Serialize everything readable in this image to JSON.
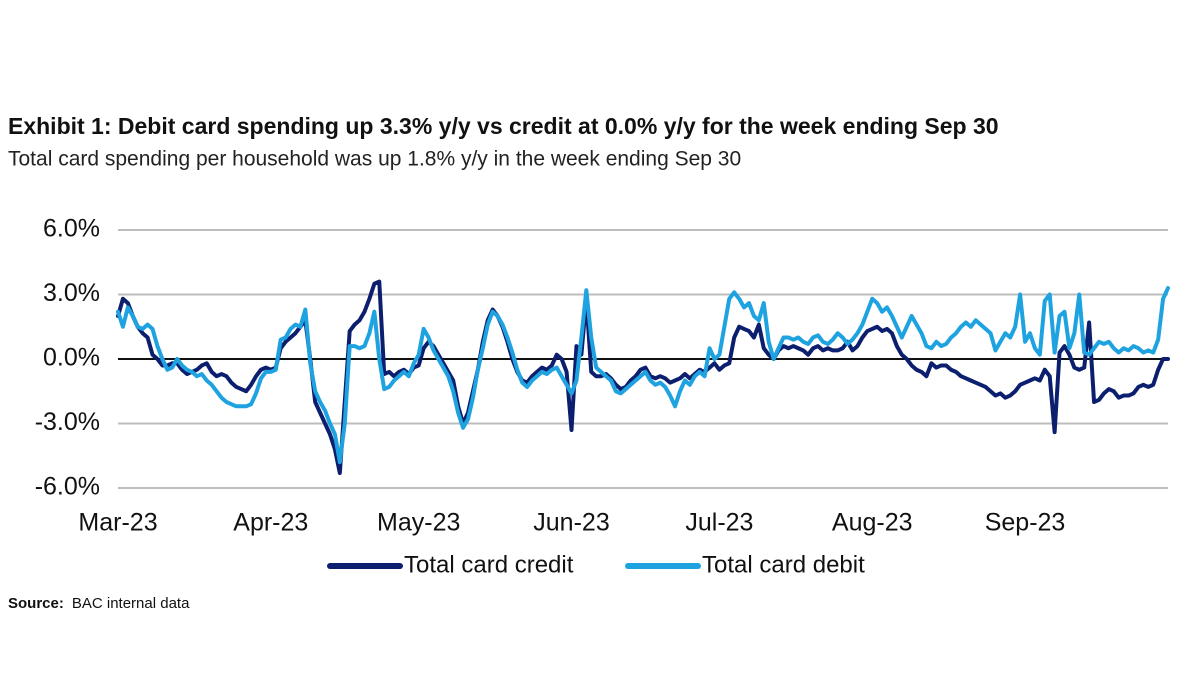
{
  "chart_data": {
    "type": "line",
    "title": "Exhibit 1: Debit card spending up 3.3% y/y vs credit at 0.0% y/y  for the week ending Sep 30",
    "subtitle": "Total card spending per household was up 1.8% y/y in the week ending Sep 30",
    "source_label": "Source:",
    "source": "BAC internal data",
    "ylim": [
      -6,
      6
    ],
    "yticks": [
      {
        "value": 6,
        "label": "6.0%"
      },
      {
        "value": 3,
        "label": "3.0%"
      },
      {
        "value": 0,
        "label": "0.0%"
      },
      {
        "value": -3,
        "label": "-3.0%"
      },
      {
        "value": -6,
        "label": "-6.0%"
      }
    ],
    "grid": true,
    "legend": "bottom",
    "categories": [
      "Mar-23",
      null,
      null,
      null,
      null,
      null,
      null,
      null,
      null,
      null,
      null,
      null,
      null,
      null,
      null,
      null,
      null,
      null,
      null,
      null,
      null,
      null,
      null,
      null,
      null,
      null,
      null,
      null,
      null,
      null,
      null,
      "Apr-23",
      null,
      null,
      null,
      null,
      null,
      null,
      null,
      null,
      null,
      null,
      null,
      null,
      null,
      null,
      null,
      null,
      null,
      null,
      null,
      null,
      null,
      null,
      null,
      null,
      null,
      null,
      null,
      null,
      null,
      "May-23",
      null,
      null,
      null,
      null,
      null,
      null,
      null,
      null,
      null,
      null,
      null,
      null,
      null,
      null,
      null,
      null,
      null,
      null,
      null,
      null,
      null,
      null,
      null,
      null,
      null,
      null,
      null,
      null,
      null,
      null,
      "Jun-23",
      null,
      null,
      null,
      null,
      null,
      null,
      null,
      null,
      null,
      null,
      null,
      null,
      null,
      null,
      null,
      null,
      null,
      null,
      null,
      null,
      null,
      null,
      null,
      null,
      null,
      null,
      null,
      null,
      null,
      "Jul-23",
      null,
      null,
      null,
      null,
      null,
      null,
      null,
      null,
      null,
      null,
      null,
      null,
      null,
      null,
      null,
      null,
      null,
      null,
      null,
      null,
      null,
      null,
      null,
      null,
      null,
      null,
      null,
      null,
      null,
      null,
      "Aug-23",
      null,
      null,
      null,
      null,
      null,
      null,
      null,
      null,
      null,
      null,
      null,
      null,
      null,
      null,
      null,
      null,
      null,
      null,
      null,
      null,
      null,
      null,
      null,
      null,
      null,
      null,
      null,
      null,
      null,
      null,
      "Sep-23",
      null,
      null,
      null,
      null,
      null,
      null,
      null,
      null,
      null,
      null,
      null,
      null,
      null,
      null,
      null,
      null,
      null,
      null,
      null,
      null,
      null,
      null,
      null,
      null,
      null,
      null,
      null,
      null,
      null
    ],
    "series": [
      {
        "name": "Total card credit",
        "color": "#0c1f6e",
        "values": [
          2.0,
          2.8,
          2.6,
          2.0,
          1.5,
          1.2,
          1.0,
          0.2,
          0.0,
          -0.3,
          -0.3,
          -0.2,
          -0.2,
          -0.5,
          -0.7,
          -0.6,
          -0.5,
          -0.3,
          -0.2,
          -0.6,
          -0.8,
          -0.7,
          -0.8,
          -1.1,
          -1.3,
          -1.4,
          -1.5,
          -1.2,
          -0.8,
          -0.5,
          -0.4,
          -0.5,
          -0.4,
          0.5,
          0.8,
          1.0,
          1.2,
          1.5,
          1.8,
          0.0,
          -2.0,
          -2.5,
          -3.0,
          -3.5,
          -4.2,
          -5.3,
          -2.0,
          1.3,
          1.6,
          1.8,
          2.2,
          2.8,
          3.5,
          3.6,
          -0.7,
          -0.6,
          -0.8,
          -0.6,
          -0.5,
          -0.7,
          -0.4,
          -0.3,
          0.5,
          0.8,
          0.6,
          0.2,
          -0.2,
          -0.6,
          -1.0,
          -2.2,
          -3.0,
          -2.5,
          -1.5,
          -0.5,
          0.8,
          1.8,
          2.3,
          2.0,
          1.5,
          0.8,
          0.0,
          -0.6,
          -1.0,
          -1.1,
          -0.8,
          -0.6,
          -0.4,
          -0.5,
          -0.3,
          0.2,
          0.0,
          -0.6,
          -3.3,
          0.6,
          0.2,
          2.8,
          -0.6,
          -0.8,
          -0.8,
          -0.7,
          -0.9,
          -1.2,
          -1.4,
          -1.3,
          -1.0,
          -0.8,
          -0.5,
          -0.4,
          -0.8,
          -0.9,
          -0.8,
          -0.9,
          -1.1,
          -1.0,
          -0.9,
          -0.7,
          -0.9,
          -0.7,
          -0.5,
          -0.6,
          -0.4,
          -0.2,
          -0.5,
          -0.3,
          -0.2,
          1.0,
          1.5,
          1.4,
          1.3,
          1.0,
          1.6,
          0.5,
          0.2,
          0.0,
          0.4,
          0.6,
          0.5,
          0.6,
          0.5,
          0.4,
          0.2,
          0.5,
          0.6,
          0.4,
          0.5,
          0.4,
          0.4,
          0.5,
          0.8,
          0.4,
          0.6,
          1.0,
          1.3,
          1.4,
          1.5,
          1.3,
          1.4,
          1.2,
          0.6,
          0.2,
          0.0,
          -0.3,
          -0.5,
          -0.6,
          -0.8,
          -0.2,
          -0.4,
          -0.3,
          -0.3,
          -0.5,
          -0.6,
          -0.8,
          -0.9,
          -1.0,
          -1.1,
          -1.2,
          -1.3,
          -1.5,
          -1.7,
          -1.6,
          -1.8,
          -1.7,
          -1.5,
          -1.2,
          -1.1,
          -1.0,
          -0.9,
          -1.0,
          -0.5,
          -0.8,
          -3.4,
          0.3,
          0.6,
          0.2,
          -0.4,
          -0.5,
          -0.4,
          1.7,
          -2.0,
          -1.9,
          -1.6,
          -1.4,
          -1.5,
          -1.8,
          -1.7,
          -1.7,
          -1.6,
          -1.3,
          -1.2,
          -1.3,
          -1.2,
          -0.5,
          0.0,
          0.0
        ]
      },
      {
        "name": "Total card debit",
        "color": "#1ea3e0",
        "values": [
          2.2,
          1.5,
          2.4,
          2.0,
          1.5,
          1.4,
          1.6,
          1.4,
          0.6,
          0.0,
          -0.5,
          -0.4,
          0.0,
          -0.3,
          -0.5,
          -0.6,
          -0.8,
          -0.7,
          -1.0,
          -1.2,
          -1.5,
          -1.8,
          -2.0,
          -2.1,
          -2.2,
          -2.2,
          -2.2,
          -2.1,
          -1.6,
          -0.9,
          -0.6,
          -0.6,
          -0.5,
          0.9,
          1.0,
          1.4,
          1.6,
          1.5,
          2.3,
          -0.2,
          -1.5,
          -2.0,
          -2.4,
          -3.0,
          -3.5,
          -4.8,
          -3.0,
          0.6,
          0.6,
          0.5,
          0.6,
          1.2,
          2.2,
          0.0,
          -1.4,
          -1.3,
          -1.0,
          -0.8,
          -0.6,
          -0.8,
          -0.2,
          0.2,
          1.4,
          1.0,
          0.4,
          0.0,
          -0.4,
          -0.8,
          -1.5,
          -2.5,
          -3.2,
          -2.8,
          -1.8,
          -0.5,
          0.5,
          1.6,
          2.2,
          2.0,
          1.6,
          1.0,
          0.3,
          -0.5,
          -1.1,
          -1.3,
          -1.0,
          -0.8,
          -0.6,
          -0.7,
          -0.5,
          -0.4,
          -0.8,
          -1.2,
          -1.6,
          -1.0,
          1.0,
          3.2,
          1.0,
          -0.4,
          -0.6,
          -0.8,
          -1.0,
          -1.5,
          -1.6,
          -1.4,
          -1.2,
          -1.0,
          -0.8,
          -0.6,
          -1.0,
          -1.2,
          -1.1,
          -1.3,
          -1.7,
          -2.2,
          -1.5,
          -1.0,
          -1.2,
          -0.8,
          -0.6,
          -0.8,
          0.5,
          0.0,
          0.2,
          1.5,
          2.8,
          3.1,
          2.8,
          2.4,
          2.6,
          2.0,
          1.8,
          2.6,
          0.8,
          0.0,
          0.5,
          1.0,
          1.0,
          0.9,
          1.0,
          0.8,
          0.7,
          1.0,
          1.1,
          0.8,
          0.7,
          0.9,
          1.2,
          1.0,
          0.7,
          0.9,
          1.2,
          1.6,
          2.2,
          2.8,
          2.6,
          2.2,
          2.4,
          2.0,
          1.5,
          1.0,
          1.5,
          2.0,
          1.6,
          1.2,
          0.6,
          0.5,
          0.8,
          0.6,
          0.7,
          1.0,
          1.2,
          1.5,
          1.7,
          1.5,
          1.8,
          1.6,
          1.4,
          1.2,
          0.4,
          0.8,
          1.2,
          1.0,
          1.5,
          3.0,
          0.8,
          1.2,
          0.5,
          0.2,
          2.7,
          3.0,
          0.3,
          2.0,
          2.2,
          0.5,
          1.2,
          3.0,
          0.3,
          0.2,
          0.5,
          0.8,
          0.7,
          0.8,
          0.5,
          0.3,
          0.5,
          0.4,
          0.6,
          0.5,
          0.3,
          0.4,
          0.3,
          0.9,
          2.8,
          3.3
        ]
      }
    ]
  }
}
